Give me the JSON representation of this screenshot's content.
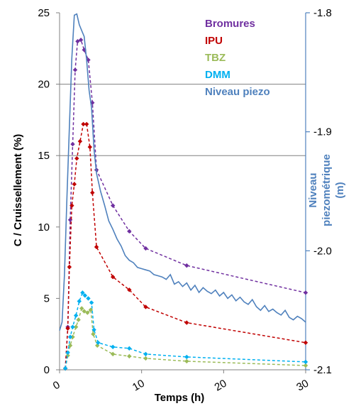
{
  "chart_data": {
    "type": "line",
    "xlabel": "Temps (h)",
    "ylabel": "C / Cruissellement  (%)",
    "y2label_lines": [
      "Niveau",
      "piezométrique",
      "(m)"
    ],
    "xlim": [
      0,
      30
    ],
    "ylim": [
      0,
      25
    ],
    "y2lim": [
      -2.1,
      -1.8
    ],
    "x_ticks": [
      0,
      10,
      20,
      30
    ],
    "y_ticks": [
      0,
      5,
      10,
      15,
      20,
      25
    ],
    "y2_ticks": [
      -1.8,
      -1.9,
      -2.0,
      -2.1
    ],
    "y2_tick_labels": [
      "-1.8",
      "-1.9",
      "-2.0",
      "-2.1"
    ],
    "gridlines_y": [
      15,
      20
    ],
    "legend_position": "top-right",
    "series": [
      {
        "name": "Bromures",
        "color": "#7030A0",
        "style": "dashed",
        "marker": "diamond",
        "axis": "left",
        "x": [
          0.7,
          1.0,
          1.3,
          1.6,
          1.9,
          2.2,
          2.6,
          3.0,
          3.5,
          4.0,
          4.5,
          6.5,
          8.5,
          10.5,
          15.5,
          30
        ],
        "y": [
          0.1,
          3.0,
          10.5,
          15.8,
          21.0,
          23.0,
          23.1,
          22.4,
          21.7,
          18.7,
          14.0,
          11.5,
          9.7,
          8.5,
          7.3,
          5.4
        ]
      },
      {
        "name": "IPU",
        "color": "#C00000",
        "style": "dashed",
        "marker": "diamond",
        "axis": "left",
        "x": [
          0.7,
          1.0,
          1.2,
          1.5,
          1.8,
          2.1,
          2.5,
          2.9,
          3.3,
          3.7,
          4.0,
          4.5,
          6.5,
          8.5,
          10.5,
          15.5,
          30
        ],
        "y": [
          0.1,
          2.9,
          7.2,
          11.5,
          13.0,
          14.8,
          16.0,
          17.2,
          17.2,
          15.6,
          12.4,
          8.6,
          6.5,
          5.6,
          4.4,
          3.3,
          1.9
        ]
      },
      {
        "name": "TBZ",
        "color": "#9BBB59",
        "style": "dashed",
        "marker": "diamond",
        "axis": "left",
        "x": [
          0.7,
          1.0,
          1.3,
          1.6,
          2.0,
          2.3,
          2.7,
          3.0,
          3.4,
          3.8,
          4.1,
          4.6,
          6.5,
          8.5,
          10.5,
          15.5,
          30
        ],
        "y": [
          0.1,
          1.0,
          1.7,
          2.3,
          3.0,
          3.5,
          4.3,
          4.1,
          4.0,
          4.2,
          2.5,
          1.7,
          1.1,
          0.95,
          0.8,
          0.6,
          0.3
        ]
      },
      {
        "name": "DMM",
        "color": "#00B0F0",
        "style": "dashed",
        "marker": "diamond",
        "axis": "left",
        "x": [
          0.7,
          1.0,
          1.3,
          1.6,
          2.0,
          2.4,
          2.8,
          3.1,
          3.5,
          3.9,
          4.2,
          4.7,
          6.5,
          8.5,
          10.5,
          15.5,
          30
        ],
        "y": [
          0.1,
          1.2,
          2.3,
          3.0,
          3.8,
          4.8,
          5.4,
          5.2,
          5.0,
          4.7,
          2.8,
          1.9,
          1.6,
          1.5,
          1.1,
          0.9,
          0.55
        ]
      },
      {
        "name": "Niveau piezo",
        "color": "#4F81BD",
        "style": "solid",
        "marker": "none",
        "axis": "right",
        "x": [
          0,
          0.3,
          0.6,
          0.9,
          1.2,
          1.5,
          1.8,
          2.1,
          2.4,
          2.7,
          3.0,
          3.3,
          3.6,
          3.9,
          4.2,
          4.5,
          5.0,
          5.5,
          6.0,
          6.5,
          7.0,
          7.5,
          8.0,
          8.5,
          9.0,
          9.5,
          10.0,
          10.5,
          11.0,
          11.5,
          12.0,
          12.5,
          13.0,
          13.5,
          14.0,
          14.5,
          15.0,
          15.5,
          16.0,
          16.5,
          17.0,
          17.5,
          18.0,
          18.5,
          19.0,
          19.5,
          20.0,
          20.5,
          21.0,
          21.5,
          22.0,
          22.5,
          23.0,
          23.5,
          24.0,
          24.5,
          25.0,
          25.5,
          26.0,
          26.5,
          27.0,
          27.5,
          28.0,
          28.5,
          29.0,
          29.5,
          30.0
        ],
        "y": [
          -2.067,
          -2.06,
          -2.02,
          -1.955,
          -1.895,
          -1.838,
          -1.802,
          -1.801,
          -1.81,
          -1.815,
          -1.82,
          -1.84,
          -1.865,
          -1.88,
          -1.915,
          -1.935,
          -1.95,
          -1.962,
          -1.975,
          -1.982,
          -1.99,
          -1.996,
          -2.004,
          -2.008,
          -2.01,
          -2.014,
          -2.015,
          -2.016,
          -2.017,
          -2.02,
          -2.021,
          -2.022,
          -2.024,
          -2.02,
          -2.028,
          -2.026,
          -2.03,
          -2.027,
          -2.033,
          -2.029,
          -2.035,
          -2.031,
          -2.034,
          -2.036,
          -2.033,
          -2.038,
          -2.035,
          -2.04,
          -2.037,
          -2.042,
          -2.039,
          -2.043,
          -2.045,
          -2.041,
          -2.047,
          -2.05,
          -2.046,
          -2.051,
          -2.049,
          -2.052,
          -2.054,
          -2.05,
          -2.056,
          -2.058,
          -2.055,
          -2.057,
          -2.06
        ]
      }
    ]
  }
}
